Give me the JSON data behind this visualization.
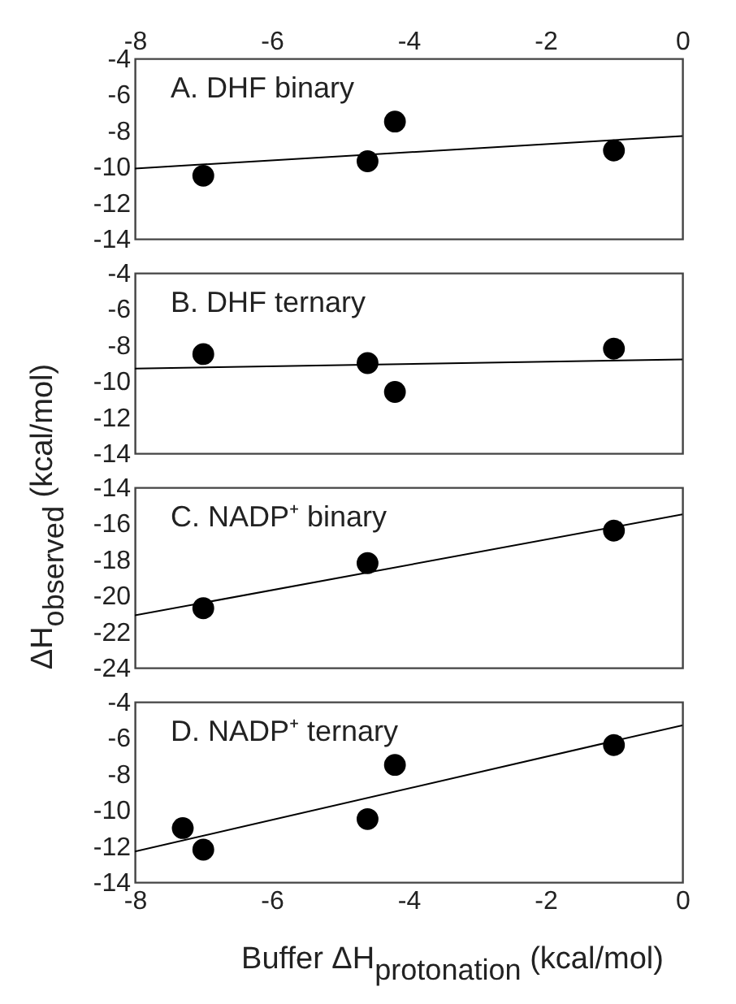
{
  "chart_data": [
    {
      "type": "scatter",
      "annotations": [
        "A. DHF binary"
      ],
      "xlim": [
        -8,
        0
      ],
      "xticks": [
        -8,
        -6,
        -4,
        -2,
        0
      ],
      "ylim": [
        -14,
        -4
      ],
      "yticks": [
        -14,
        -12,
        -10,
        -8,
        -6,
        -4
      ],
      "grid": false,
      "series": [
        {
          "marker": "circle",
          "color": "#000000",
          "x": [
            -7,
            -4.6,
            -4.2,
            -1
          ],
          "values": [
            -10.5,
            -9.7,
            -7.5,
            -9.1
          ]
        },
        {
          "type": "line",
          "color": "#000000",
          "x": [
            -8,
            0
          ],
          "values": [
            -10.1,
            -8.3
          ]
        }
      ]
    },
    {
      "type": "scatter",
      "annotations": [
        "B. DHF ternary"
      ],
      "xlim": [
        -8,
        0
      ],
      "xticks": [
        -8,
        -6,
        -4,
        -2,
        0
      ],
      "ylim": [
        -14,
        -4
      ],
      "yticks": [
        -14,
        -12,
        -10,
        -8,
        -6,
        -4
      ],
      "tick_labels": "y",
      "grid": false,
      "series": [
        {
          "marker": "circle",
          "color": "#000000",
          "x": [
            -7,
            -4.6,
            -4.2,
            -1
          ],
          "values": [
            -8.5,
            -9.0,
            -10.6,
            -8.2
          ]
        },
        {
          "type": "line",
          "color": "#000000",
          "x": [
            -8,
            0
          ],
          "values": [
            -9.3,
            -8.8
          ]
        }
      ]
    },
    {
      "type": "scatter",
      "annotations": [
        "C. NADP⁺ binary"
      ],
      "ylabel": "ΔH$_{observed}$ (kcal/mol)",
      "xlim": [
        -8,
        0
      ],
      "xticks": [
        -8,
        -6,
        -4,
        -2,
        0
      ],
      "ylim": [
        -24,
        -14
      ],
      "yticks": [
        -24,
        -22,
        -20,
        -18,
        -16,
        -14
      ],
      "tick_labels": "y",
      "grid": false,
      "series": [
        {
          "marker": "circle",
          "color": "#000000",
          "x": [
            -7,
            -4.6,
            -1
          ],
          "values": [
            -20.7,
            -18.2,
            -16.4
          ]
        },
        {
          "type": "line",
          "color": "#000000",
          "x": [
            -8,
            0
          ],
          "values": [
            -21.1,
            -15.5
          ]
        }
      ]
    },
    {
      "type": "scatter",
      "annotations": [
        "D. NADP⁺ ternary"
      ],
      "xlabel": "Buffer ΔH$_{protonation}$ (kcal/mol)",
      "xlim": [
        -8,
        0
      ],
      "xticks": [
        -8,
        -6,
        -4,
        -2,
        0
      ],
      "ylim": [
        -14,
        -4
      ],
      "yticks": [
        -14,
        -12,
        -10,
        -8,
        -6,
        -4
      ],
      "grid": false,
      "series": [
        {
          "marker": "circle",
          "color": "#000000",
          "x": [
            -7.3,
            -7,
            -4.6,
            -4.2,
            -1
          ],
          "values": [
            -11.0,
            -12.2,
            -10.5,
            -7.5,
            -6.4
          ]
        },
        {
          "type": "line",
          "color": "#000000",
          "x": [
            -8,
            0
          ],
          "values": [
            -12.3,
            -5.3
          ]
        }
      ]
    }
  ]
}
